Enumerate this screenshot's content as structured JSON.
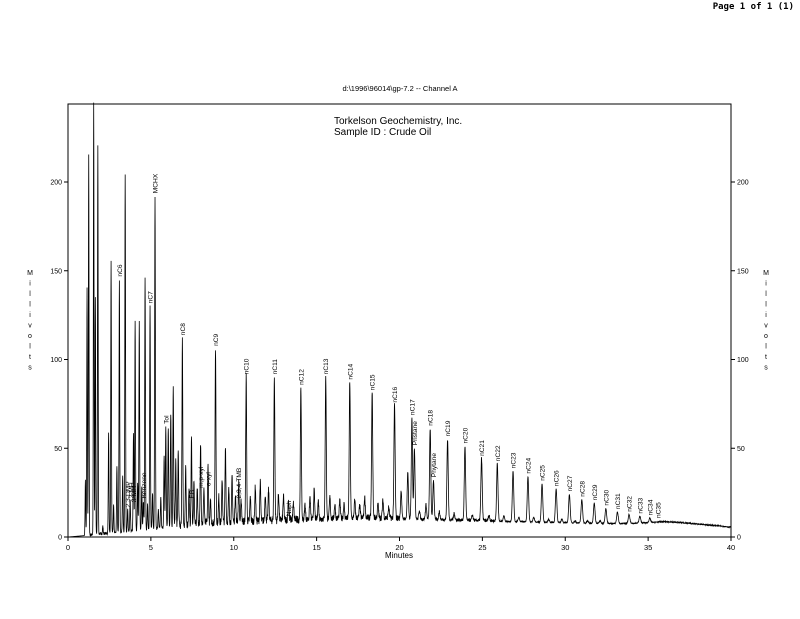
{
  "page": {
    "page_label": "Page 1 of 1 (1)"
  },
  "chart_data": {
    "type": "line",
    "title": "d:\\1996\\96014\\gp-7.2 -- Channel A",
    "header_lines": [
      "Torkelson Geochemistry, Inc.",
      "Sample ID  :  Crude Oil"
    ],
    "xlabel": "Minutes",
    "ylabel": "Millivolts",
    "xlim": [
      0,
      40
    ],
    "ylim": [
      0,
      245
    ],
    "x_ticks": [
      0,
      5,
      10,
      15,
      20,
      25,
      30,
      35,
      40
    ],
    "y_ticks": [
      0,
      50,
      100,
      150,
      200
    ],
    "grid": false,
    "legend": "none",
    "line_color": "#000000",
    "series": [
      {
        "baseline": [
          [
            0,
            0
          ],
          [
            1.0,
            0.8
          ],
          [
            2,
            1.6
          ],
          [
            3,
            2.4
          ],
          [
            4,
            3.2
          ],
          [
            5,
            4.2
          ],
          [
            6,
            5.2
          ],
          [
            7,
            6.2
          ],
          [
            8,
            7.2
          ],
          [
            9,
            7.6
          ],
          [
            10,
            8
          ],
          [
            11,
            8.3
          ],
          [
            12,
            8.6
          ],
          [
            13,
            9
          ],
          [
            14,
            9.3
          ],
          [
            15,
            9.6
          ],
          [
            16,
            10
          ],
          [
            17,
            10.2
          ],
          [
            18,
            10.4
          ],
          [
            19,
            10.3
          ],
          [
            20,
            10.1
          ],
          [
            21,
            9.9
          ],
          [
            22,
            9.7
          ],
          [
            23,
            9.5
          ],
          [
            24,
            9.2
          ],
          [
            25,
            9
          ],
          [
            26,
            8.8
          ],
          [
            27,
            8.6
          ],
          [
            28,
            8.4
          ],
          [
            29,
            8.2
          ],
          [
            30,
            8
          ],
          [
            31,
            7.8
          ],
          [
            32,
            7.6
          ],
          [
            33,
            7.5
          ],
          [
            34,
            7.6
          ],
          [
            35,
            8
          ],
          [
            36,
            8.6
          ],
          [
            37,
            8
          ],
          [
            38,
            7.2
          ],
          [
            39,
            6.4
          ],
          [
            40,
            5.5
          ]
        ]
      }
    ],
    "peaks": [
      {
        "x": 1.05,
        "y": 32
      },
      {
        "x": 1.15,
        "y": 140
      },
      {
        "x": 1.25,
        "y": 215
      },
      {
        "x": 1.55,
        "y": 245
      },
      {
        "x": 1.65,
        "y": 135
      },
      {
        "x": 1.8,
        "y": 220
      },
      {
        "x": 2.1,
        "y": 6
      },
      {
        "x": 2.45,
        "y": 58
      },
      {
        "x": 2.6,
        "y": 155
      },
      {
        "x": 2.75,
        "y": 18
      },
      {
        "x": 2.95,
        "y": 40
      },
      {
        "x": 3.1,
        "y": 145
      },
      {
        "x": 3.3,
        "y": 35
      },
      {
        "x": 3.45,
        "y": 204
      },
      {
        "x": 3.6,
        "y": 15
      },
      {
        "x": 3.75,
        "y": 20
      },
      {
        "x": 3.95,
        "y": 58
      },
      {
        "x": 4.05,
        "y": 122
      },
      {
        "x": 4.2,
        "y": 30
      },
      {
        "x": 4.3,
        "y": 121
      },
      {
        "x": 4.45,
        "y": 28
      },
      {
        "x": 4.55,
        "y": 20
      },
      {
        "x": 4.65,
        "y": 146
      },
      {
        "x": 4.8,
        "y": 18
      },
      {
        "x": 4.95,
        "y": 130
      },
      {
        "x": 5.1,
        "y": 25
      },
      {
        "x": 5.25,
        "y": 192
      },
      {
        "x": 5.45,
        "y": 15
      },
      {
        "x": 5.6,
        "y": 22
      },
      {
        "x": 5.8,
        "y": 45
      },
      {
        "x": 5.9,
        "y": 62
      },
      {
        "x": 6.05,
        "y": 62
      },
      {
        "x": 6.2,
        "y": 70
      },
      {
        "x": 6.35,
        "y": 83
      },
      {
        "x": 6.5,
        "y": 42
      },
      {
        "x": 6.65,
        "y": 48
      },
      {
        "x": 6.9,
        "y": 112
      },
      {
        "x": 7.1,
        "y": 38
      },
      {
        "x": 7.3,
        "y": 26
      },
      {
        "x": 7.45,
        "y": 55
      },
      {
        "x": 7.6,
        "y": 30
      },
      {
        "x": 7.8,
        "y": 28
      },
      {
        "x": 8.0,
        "y": 52
      },
      {
        "x": 8.2,
        "y": 27
      },
      {
        "x": 8.45,
        "y": 40
      },
      {
        "x": 8.6,
        "y": 20
      },
      {
        "x": 8.9,
        "y": 106
      },
      {
        "x": 9.1,
        "y": 22
      },
      {
        "x": 9.3,
        "y": 32
      },
      {
        "x": 9.5,
        "y": 50
      },
      {
        "x": 9.7,
        "y": 26
      },
      {
        "x": 9.9,
        "y": 34
      },
      {
        "x": 10.1,
        "y": 24
      },
      {
        "x": 10.3,
        "y": 30
      },
      {
        "x": 10.45,
        "y": 20
      },
      {
        "x": 10.75,
        "y": 90
      },
      {
        "x": 11.0,
        "y": 22
      },
      {
        "x": 11.3,
        "y": 28
      },
      {
        "x": 11.6,
        "y": 30
      },
      {
        "x": 11.9,
        "y": 24
      },
      {
        "x": 12.1,
        "y": 26
      },
      {
        "x": 12.45,
        "y": 90
      },
      {
        "x": 12.7,
        "y": 24
      },
      {
        "x": 13.0,
        "y": 22
      },
      {
        "x": 13.3,
        "y": 20
      },
      {
        "x": 13.6,
        "y": 18
      },
      {
        "x": 14.05,
        "y": 84
      },
      {
        "x": 14.3,
        "y": 18
      },
      {
        "x": 14.6,
        "y": 22
      },
      {
        "x": 14.85,
        "y": 26
      },
      {
        "x": 15.1,
        "y": 20
      },
      {
        "x": 15.55,
        "y": 90
      },
      {
        "x": 15.8,
        "y": 22
      },
      {
        "x": 16.1,
        "y": 18
      },
      {
        "x": 16.4,
        "y": 20
      },
      {
        "x": 16.65,
        "y": 18
      },
      {
        "x": 17.0,
        "y": 87
      },
      {
        "x": 17.3,
        "y": 20
      },
      {
        "x": 17.6,
        "y": 17
      },
      {
        "x": 17.9,
        "y": 22
      },
      {
        "x": 18.35,
        "y": 81
      },
      {
        "x": 18.7,
        "y": 18
      },
      {
        "x": 19.0,
        "y": 20
      },
      {
        "x": 19.35,
        "y": 16
      },
      {
        "x": 19.7,
        "y": 74
      },
      {
        "x": 20.1,
        "y": 26
      },
      {
        "x": 20.5,
        "y": 36
      },
      {
        "x": 20.75,
        "y": 67
      },
      {
        "x": 20.9,
        "y": 50
      },
      {
        "x": 21.2,
        "y": 15
      },
      {
        "x": 21.6,
        "y": 18
      },
      {
        "x": 21.85,
        "y": 61
      },
      {
        "x": 22.05,
        "y": 32
      },
      {
        "x": 22.4,
        "y": 14
      },
      {
        "x": 22.9,
        "y": 55
      },
      {
        "x": 23.3,
        "y": 13
      },
      {
        "x": 23.95,
        "y": 51
      },
      {
        "x": 24.4,
        "y": 12
      },
      {
        "x": 24.95,
        "y": 44
      },
      {
        "x": 25.4,
        "y": 12
      },
      {
        "x": 25.9,
        "y": 41
      },
      {
        "x": 26.3,
        "y": 12
      },
      {
        "x": 26.85,
        "y": 37
      },
      {
        "x": 27.2,
        "y": 11
      },
      {
        "x": 27.75,
        "y": 34
      },
      {
        "x": 28.1,
        "y": 11
      },
      {
        "x": 28.6,
        "y": 30
      },
      {
        "x": 29.0,
        "y": 10
      },
      {
        "x": 29.45,
        "y": 27
      },
      {
        "x": 29.8,
        "y": 10
      },
      {
        "x": 30.25,
        "y": 24
      },
      {
        "x": 30.6,
        "y": 9
      },
      {
        "x": 31.0,
        "y": 21
      },
      {
        "x": 31.35,
        "y": 9
      },
      {
        "x": 31.75,
        "y": 19
      },
      {
        "x": 32.1,
        "y": 9
      },
      {
        "x": 32.45,
        "y": 16
      },
      {
        "x": 33.15,
        "y": 14
      },
      {
        "x": 33.85,
        "y": 12.5
      },
      {
        "x": 34.5,
        "y": 11.5
      },
      {
        "x": 35.1,
        "y": 10.5
      }
    ],
    "annotations": [
      {
        "text": "nC6",
        "x": 3.1,
        "y": 145
      },
      {
        "text": "2,3-DMP",
        "x": 3.6,
        "y": 15
      },
      {
        "text": "2-MH",
        "x": 3.8,
        "y": 20
      },
      {
        "text": "3-MH",
        "x": 3.95,
        "y": 18
      },
      {
        "text": "Benzene",
        "x": 4.55,
        "y": 20
      },
      {
        "text": "nC7",
        "x": 4.95,
        "y": 130
      },
      {
        "text": "MCHX",
        "x": 5.25,
        "y": 192
      },
      {
        "text": "Tol",
        "x": 5.9,
        "y": 62
      },
      {
        "text": "nC8",
        "x": 6.9,
        "y": 112
      },
      {
        "text": "EB",
        "x": 7.45,
        "y": 20
      },
      {
        "text": "m,p-xyl",
        "x": 8.0,
        "y": 26
      },
      {
        "text": "o-xyl",
        "x": 8.45,
        "y": 27
      },
      {
        "text": "nC9",
        "x": 8.9,
        "y": 106
      },
      {
        "text": "2,3,4-TMB",
        "x": 10.3,
        "y": 20
      },
      {
        "text": "nC10",
        "x": 10.75,
        "y": 90
      },
      {
        "text": "nC11",
        "x": 12.45,
        "y": 90
      },
      {
        "text": "Naph",
        "x": 13.3,
        "y": 10
      },
      {
        "text": "nC12",
        "x": 14.05,
        "y": 84
      },
      {
        "text": "nC13",
        "x": 15.55,
        "y": 90
      },
      {
        "text": "nC14",
        "x": 17.0,
        "y": 87
      },
      {
        "text": "nC15",
        "x": 18.35,
        "y": 81
      },
      {
        "text": "nC16",
        "x": 19.7,
        "y": 74
      },
      {
        "text": "nC17",
        "x": 20.75,
        "y": 67
      },
      {
        "text": "Pristane",
        "x": 20.9,
        "y": 50
      },
      {
        "text": "nC18",
        "x": 21.85,
        "y": 61
      },
      {
        "text": "Phytane",
        "x": 22.05,
        "y": 32
      },
      {
        "text": "nC19",
        "x": 22.9,
        "y": 55
      },
      {
        "text": "nC20",
        "x": 23.95,
        "y": 51
      },
      {
        "text": "nC21",
        "x": 24.95,
        "y": 44
      },
      {
        "text": "nC22",
        "x": 25.9,
        "y": 41
      },
      {
        "text": "nC23",
        "x": 26.85,
        "y": 37
      },
      {
        "text": "nC24",
        "x": 27.75,
        "y": 34
      },
      {
        "text": "nC25",
        "x": 28.6,
        "y": 30
      },
      {
        "text": "nC26",
        "x": 29.45,
        "y": 27
      },
      {
        "text": "nC27",
        "x": 30.25,
        "y": 24
      },
      {
        "text": "nC28",
        "x": 31.0,
        "y": 21
      },
      {
        "text": "nC29",
        "x": 31.75,
        "y": 19
      },
      {
        "text": "nC30",
        "x": 32.45,
        "y": 16
      },
      {
        "text": "nC31",
        "x": 33.15,
        "y": 14
      },
      {
        "text": "nC32",
        "x": 33.85,
        "y": 12.5
      },
      {
        "text": "nC33",
        "x": 34.5,
        "y": 11.5
      },
      {
        "text": "nC34",
        "x": 35.1,
        "y": 10.5
      },
      {
        "text": "nC35",
        "x": 35.6,
        "y": 9
      }
    ]
  }
}
